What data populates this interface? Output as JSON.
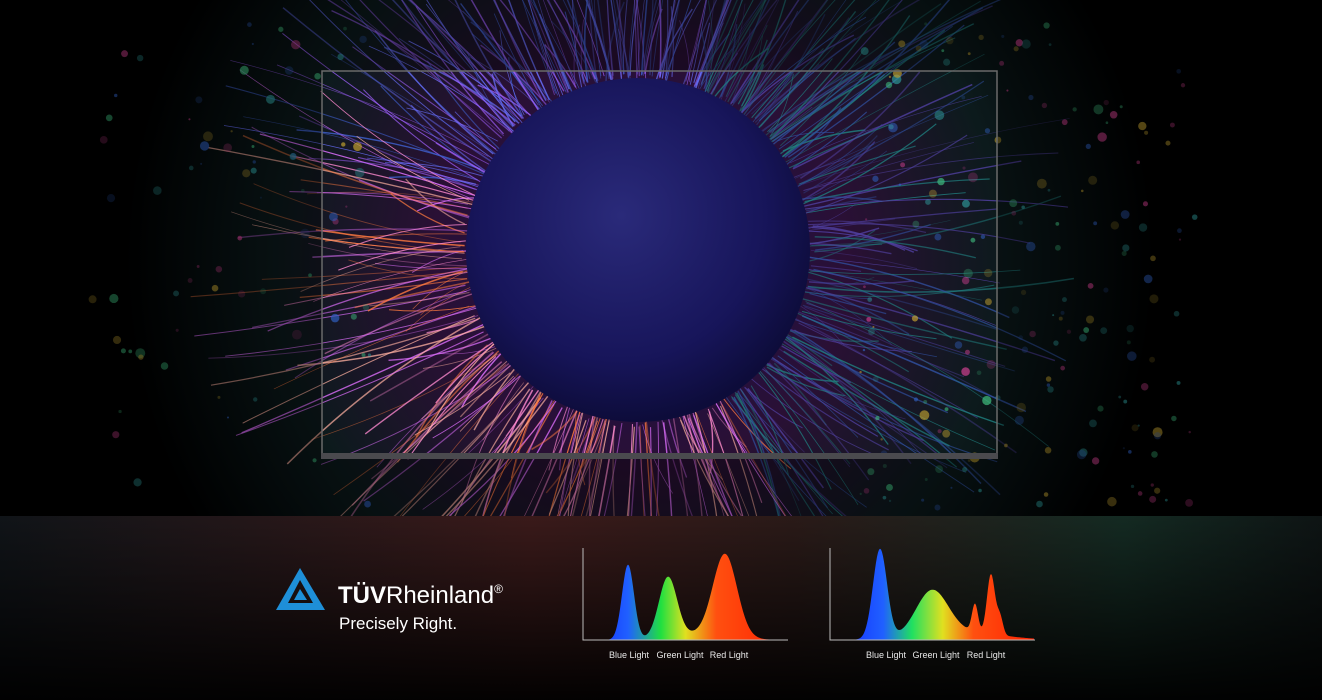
{
  "logo": {
    "brand_bold": "TÜV",
    "brand": "Rheinland",
    "mark": "®",
    "tagline": "Precisely Right."
  },
  "spectra": [
    {
      "labels": [
        "Blue Light",
        "Green Light",
        "Red Light"
      ]
    },
    {
      "labels": [
        "Blue Light",
        "Green Light",
        "Red Light"
      ]
    }
  ]
}
